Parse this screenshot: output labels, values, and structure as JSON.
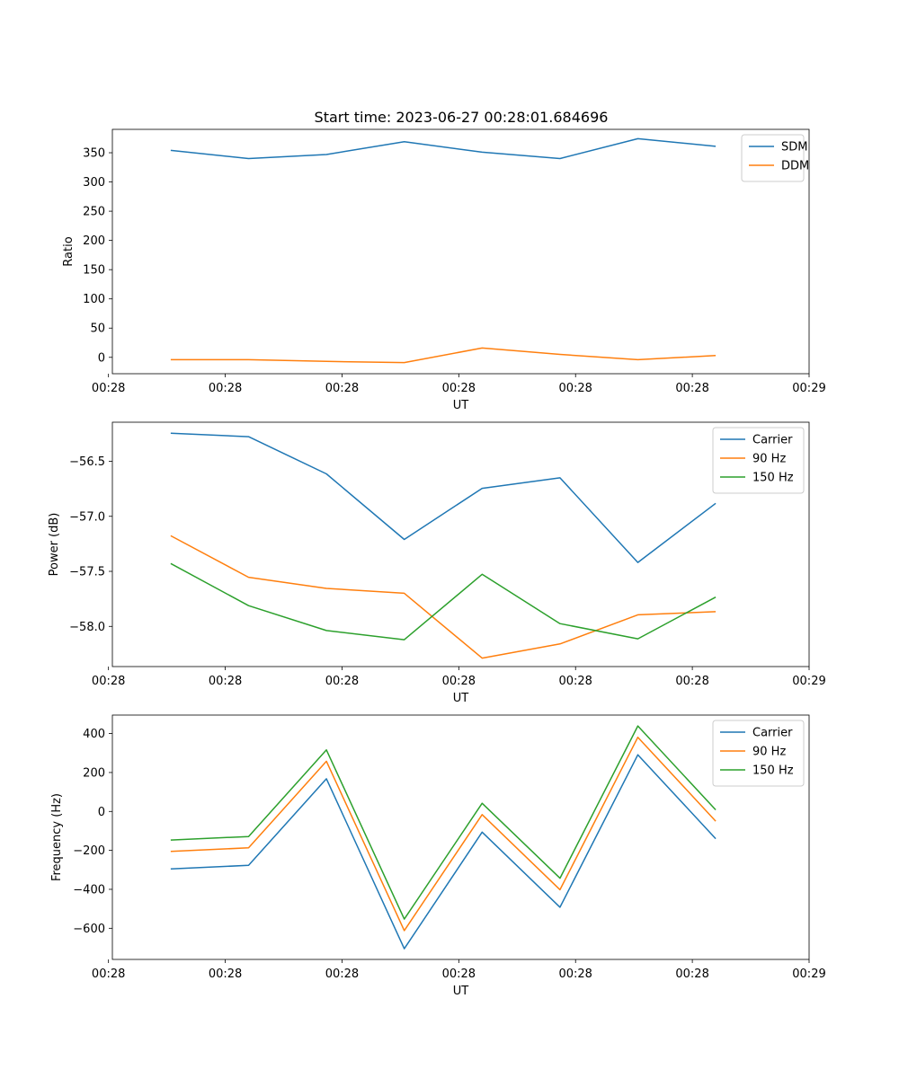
{
  "title": "Start time: 2023-06-27 00:28:01.684696",
  "colors": {
    "blue": "#1f77b4",
    "orange": "#ff7f0e",
    "green": "#2ca02c"
  },
  "chart_data": [
    {
      "type": "line",
      "ylabel": "Ratio",
      "xlabel": "UT",
      "legend_position": "top-right",
      "grid": false,
      "x": [
        1,
        2,
        3,
        4,
        5,
        6,
        7,
        8
      ],
      "xlim": [
        0.25,
        9.2
      ],
      "ylim": [
        -28,
        390
      ],
      "yticks": [
        0,
        50,
        100,
        150,
        200,
        250,
        300,
        350
      ],
      "xtick_values": [
        0.2,
        1.7,
        3.2,
        4.7,
        6.2,
        7.7,
        9.2
      ],
      "xtick_labels": [
        "00:28",
        "00:28",
        "00:28",
        "00:28",
        "00:28",
        "00:28",
        "00:29"
      ],
      "series": [
        {
          "name": "SDM",
          "color": "#1f77b4",
          "values": [
            354,
            340,
            347,
            369,
            351,
            340,
            374,
            361
          ]
        },
        {
          "name": "DDM",
          "color": "#ff7f0e",
          "values": [
            -4,
            -4,
            -7,
            -9,
            16,
            5,
            -4,
            3
          ]
        }
      ]
    },
    {
      "type": "line",
      "ylabel": "Power (dB)",
      "xlabel": "UT",
      "legend_position": "top-right",
      "grid": false,
      "x": [
        1,
        2,
        3,
        4,
        5,
        6,
        7,
        8
      ],
      "xlim": [
        0.25,
        9.2
      ],
      "ylim": [
        -58.365,
        -56.145
      ],
      "yticks": [
        -56.5,
        -57.0,
        -57.5,
        -58.0
      ],
      "ytick_labels": [
        "−56.5",
        "−57.0",
        "−57.5",
        "−58.0"
      ],
      "xtick_values": [
        0.2,
        1.7,
        3.2,
        4.7,
        6.2,
        7.7,
        9.2
      ],
      "xtick_labels": [
        "00:28",
        "00:28",
        "00:28",
        "00:28",
        "00:28",
        "00:28",
        "00:29"
      ],
      "series": [
        {
          "name": "Carrier",
          "color": "#1f77b4",
          "values": [
            -56.245,
            -56.276,
            -56.614,
            -57.21,
            -56.746,
            -56.65,
            -57.419,
            -56.882
          ]
        },
        {
          "name": "90 Hz",
          "color": "#ff7f0e",
          "values": [
            -57.177,
            -57.554,
            -57.655,
            -57.699,
            -58.288,
            -58.159,
            -57.895,
            -57.866
          ]
        },
        {
          "name": "150 Hz",
          "color": "#2ca02c",
          "values": [
            -57.429,
            -57.812,
            -58.038,
            -58.121,
            -57.527,
            -57.975,
            -58.113,
            -57.734
          ]
        }
      ]
    },
    {
      "type": "line",
      "ylabel": "Frequency (Hz)",
      "xlabel": "UT",
      "legend_position": "top-right",
      "grid": false,
      "x": [
        1,
        2,
        3,
        4,
        5,
        6,
        7,
        8
      ],
      "xlim": [
        0.25,
        9.2
      ],
      "ylim": [
        -760,
        495
      ],
      "yticks": [
        400,
        200,
        0,
        -200,
        -400,
        -600
      ],
      "ytick_labels": [
        "400",
        "200",
        "0",
        "−200",
        "−400",
        "−600"
      ],
      "xtick_values": [
        0.2,
        1.7,
        3.2,
        4.7,
        6.2,
        7.7,
        9.2
      ],
      "xtick_labels": [
        "00:28",
        "00:28",
        "00:28",
        "00:28",
        "00:28",
        "00:28",
        "00:29"
      ],
      "series": [
        {
          "name": "Carrier",
          "color": "#1f77b4",
          "values": [
            -295,
            -277,
            168,
            -705,
            -106,
            -492,
            291,
            -140
          ]
        },
        {
          "name": "90 Hz",
          "color": "#ff7f0e",
          "values": [
            -205,
            -187,
            258,
            -612,
            -16,
            -402,
            381,
            -50
          ]
        },
        {
          "name": "150 Hz",
          "color": "#2ca02c",
          "values": [
            -147,
            -129,
            316,
            -553,
            42,
            -343,
            439,
            8
          ]
        }
      ]
    }
  ]
}
